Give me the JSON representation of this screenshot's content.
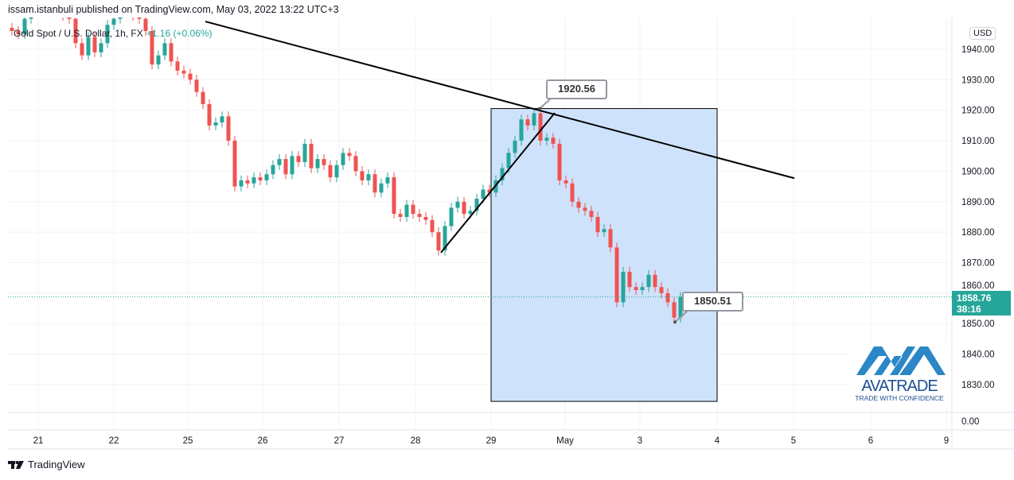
{
  "header": {
    "published_text": "issam.istanbuli published on TradingView.com, May 03, 2022 13:22 UTC+3"
  },
  "legend": {
    "symbol": "Gold Spot / U.S. Dollar, 1h, FX",
    "change": "+1.16 (+0.06%)"
  },
  "currency_button": "USD",
  "last_price": {
    "value": "1858.76",
    "countdown": "38:16"
  },
  "callouts": {
    "high": "1920.56",
    "low": "1850.51"
  },
  "footer": {
    "brand": "TradingView"
  },
  "watermark": {
    "name": "AVATRADE",
    "tagline": "TRADE WITH CONFIDENCE"
  },
  "colors": {
    "up": "#26a69a",
    "down": "#ef5350",
    "box_fill": "#cfe2fb",
    "trendline": "#000000",
    "logo_blue": "#2b87c6",
    "logo_dark": "#1d4f91"
  },
  "chart_data": {
    "type": "candlestick",
    "title": "Gold Spot / U.S. Dollar, 1h, FX",
    "x_tick_labels": [
      "21",
      "22",
      "25",
      "26",
      "27",
      "28",
      "29",
      "May",
      "3",
      "4",
      "5",
      "6",
      "9"
    ],
    "y_tick_labels": [
      "1940.00",
      "1930.00",
      "1920.00",
      "1910.00",
      "1900.00",
      "1890.00",
      "1880.00",
      "1870.00",
      "1860.00",
      "1850.00",
      "1840.00",
      "1830.00"
    ],
    "volume_axis_label": "0.00",
    "ylim": [
      1824,
      1950
    ],
    "grid": true,
    "closes": [
      1946,
      1945,
      1950,
      1952,
      1953,
      1954,
      1953,
      1952,
      1951,
      1950,
      1942,
      1938,
      1944,
      1939,
      1942,
      1948,
      1950,
      1953,
      1952,
      1951,
      1950,
      1946,
      1935,
      1938,
      1942,
      1936,
      1933,
      1932,
      1930,
      1926,
      1922,
      1915,
      1916,
      1918,
      1910,
      1895,
      1897,
      1896,
      1898,
      1897,
      1899,
      1902,
      1904,
      1899,
      1905,
      1903,
      1909,
      1901,
      1904,
      1902,
      1898,
      1902,
      1906,
      1905,
      1900,
      1897,
      1899,
      1893,
      1896,
      1898,
      1886,
      1885,
      1889,
      1886,
      1885,
      1884,
      1880,
      1874,
      1882,
      1888,
      1890,
      1886,
      1887,
      1891,
      1894,
      1893,
      1897,
      1901,
      1906,
      1910,
      1917,
      1915,
      1919,
      1910,
      1911,
      1909,
      1897,
      1896,
      1890,
      1888,
      1887,
      1885,
      1880,
      1881,
      1875,
      1857,
      1867,
      1862,
      1861,
      1862,
      1866,
      1862,
      1860,
      1857,
      1852,
      1858.76
    ],
    "drawings": {
      "descending_trendline": {
        "from_price": 1949.1,
        "to_price": 1897.7
      },
      "ascending_trendline": {
        "from_price": 1873.3,
        "to_price": 1919.1
      },
      "date_price_range_box": {
        "top_price": 1920.56,
        "bottom_price": 1824.5
      },
      "high_marker": 1920.56,
      "low_marker": 1850.51,
      "last_price_line": 1858.76
    }
  }
}
